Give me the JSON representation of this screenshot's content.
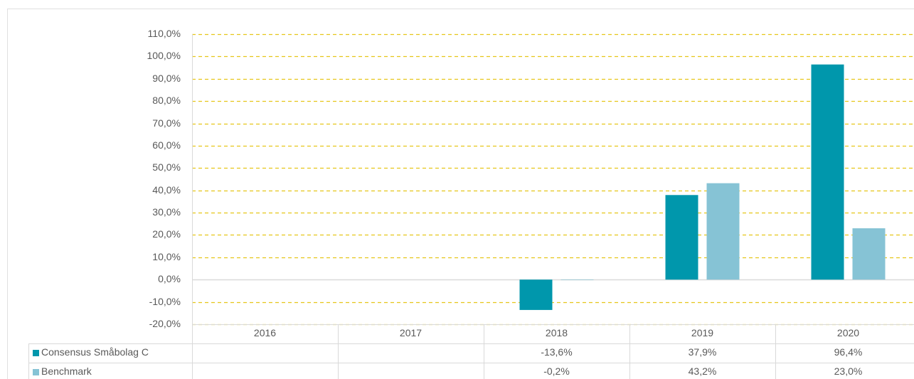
{
  "chart_data": {
    "type": "bar",
    "categories": [
      "2016",
      "2017",
      "2018",
      "2019",
      "2020"
    ],
    "series": [
      {
        "name": "Consensus Småbolag C",
        "color": "#0097ac",
        "values": [
          null,
          null,
          -13.6,
          37.9,
          96.4
        ],
        "value_labels": [
          null,
          null,
          "-13,6%",
          "37,9%",
          "96,4%"
        ]
      },
      {
        "name": "Benchmark",
        "color": "#86c3d5",
        "values": [
          null,
          null,
          -0.2,
          43.2,
          23.0
        ],
        "value_labels": [
          null,
          null,
          "-0,2%",
          "43,2%",
          "23,0%"
        ]
      }
    ],
    "ylim": [
      -20,
      110
    ],
    "yticks": [
      {
        "value": -20,
        "label": "-20,0%"
      },
      {
        "value": -10,
        "label": "-10,0%"
      },
      {
        "value": 0,
        "label": "0,0%"
      },
      {
        "value": 10,
        "label": "10,0%"
      },
      {
        "value": 20,
        "label": "20,0%"
      },
      {
        "value": 30,
        "label": "30,0%"
      },
      {
        "value": 40,
        "label": "40,0%"
      },
      {
        "value": 50,
        "label": "50,0%"
      },
      {
        "value": 60,
        "label": "60,0%"
      },
      {
        "value": 70,
        "label": "70,0%"
      },
      {
        "value": 80,
        "label": "80,0%"
      },
      {
        "value": 90,
        "label": "90,0%"
      },
      {
        "value": 100,
        "label": "100,0%"
      },
      {
        "value": 110,
        "label": "110,0%"
      }
    ],
    "grid": true,
    "grid_color": "#e6c619",
    "data_table": true
  }
}
